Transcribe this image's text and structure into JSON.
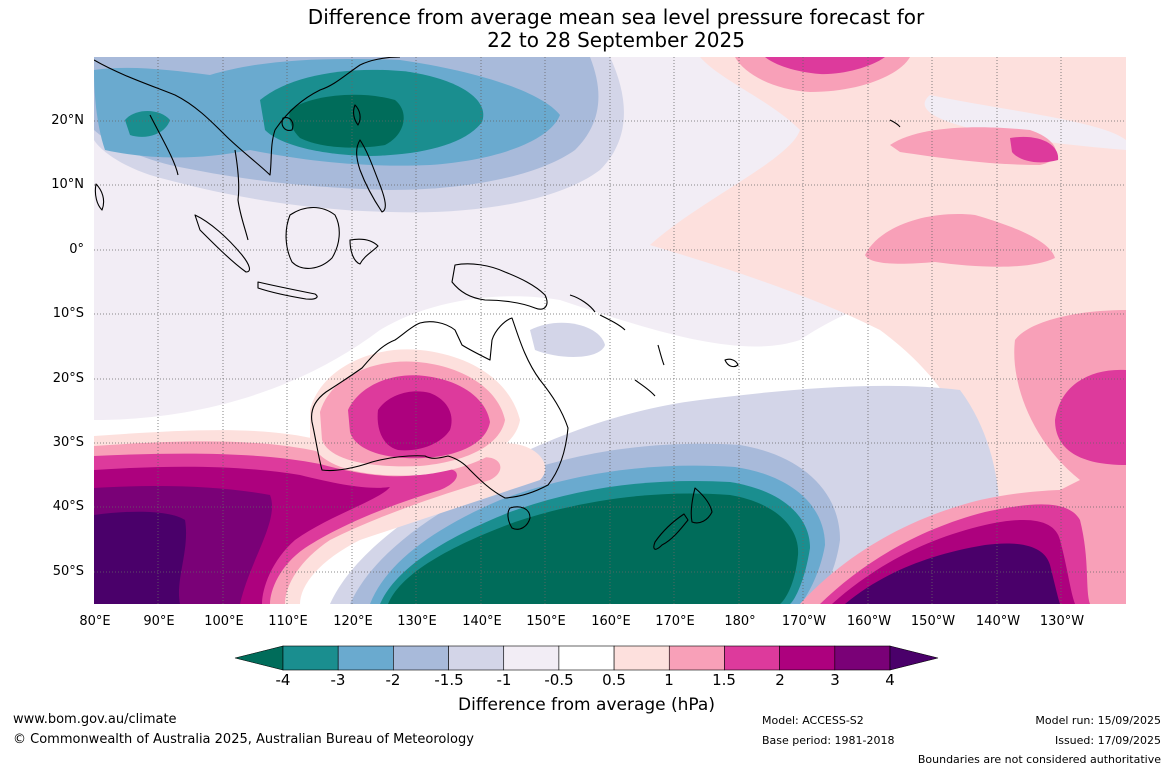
{
  "title": {
    "line1": "Difference from average mean sea level pressure forecast for",
    "line2": "22 to 28 September 2025"
  },
  "latitude_labels": [
    "20°N",
    "10°N",
    "0°",
    "10°S",
    "20°S",
    "30°S",
    "40°S",
    "50°S"
  ],
  "longitude_labels": [
    "80°E",
    "90°E",
    "100°E",
    "110°E",
    "120°E",
    "130°E",
    "140°E",
    "150°E",
    "160°E",
    "170°E",
    "180°",
    "170°W",
    "160°W",
    "150°W",
    "140°W",
    "130°W"
  ],
  "colorbar": {
    "title": "Difference from average (hPa)",
    "tick_labels": [
      "-4",
      "-3",
      "-2",
      "-1.5",
      "-1",
      "-0.5",
      "0.5",
      "1",
      "1.5",
      "2",
      "3",
      "4"
    ],
    "colors": [
      "#006c5a",
      "#1a8e8f",
      "#6aaacf",
      "#a8bada",
      "#d3d5e8",
      "#f2edf5",
      "#ffffff",
      "#fde0dd",
      "#f8a0b8",
      "#dd3a9c",
      "#ad017e",
      "#7a0177",
      "#4a006a"
    ]
  },
  "footer": {
    "url": "www.bom.gov.au/climate",
    "copyright": "© Commonwealth of Australia 2025, Australian Bureau of Meteorology",
    "model": "Model: ACCESS-S2",
    "base_period": "Base period: 1981-2018",
    "model_run": "Model run: 15/09/2025",
    "issued": "Issued: 17/09/2025",
    "disclaimer": "Boundaries are not considered authoritative"
  }
}
